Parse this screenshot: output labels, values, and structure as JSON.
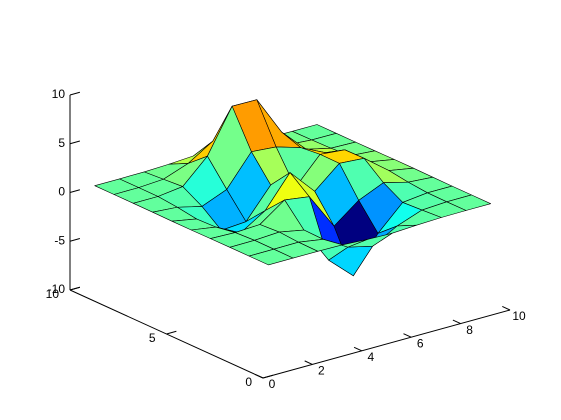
{
  "chart_data": {
    "type": "surface",
    "x": [
      1,
      2,
      3,
      4,
      5,
      6,
      7,
      8,
      9,
      10
    ],
    "y": [
      1,
      2,
      3,
      4,
      5,
      6,
      7,
      8,
      9,
      10
    ],
    "z": [
      [
        0,
        0,
        0,
        -0.03,
        -0.18,
        -0.25,
        -0.11,
        -0.02,
        0,
        0
      ],
      [
        0,
        0.01,
        0.03,
        -0.37,
        -1.87,
        -2.47,
        -1.09,
        -0.16,
        -0.01,
        0
      ],
      [
        0,
        0.02,
        0.17,
        -0.32,
        -4.1,
        -6.41,
        -2.76,
        -0.28,
        0.01,
        0
      ],
      [
        -0.01,
        -0.09,
        0.04,
        1.86,
        1.5,
        -2.22,
        -0.27,
        0.84,
        0.2,
        0.01
      ],
      [
        -0.03,
        -0.43,
        -1.73,
        -0.12,
        3.07,
        0.45,
        2.62,
        2.44,
        0.49,
        0.03
      ],
      [
        -0.03,
        -0.5,
        -2.36,
        -2.17,
        0.89,
        -0.05,
        2.64,
        2.41,
        0.48,
        0.03
      ],
      [
        -0.01,
        -0.2,
        -0.81,
        0.23,
        3.4,
        3.2,
        2.43,
        1.21,
        0.21,
        0.01
      ],
      [
        0,
        0,
        0.32,
        2.74,
        7.17,
        7.14,
        3.13,
        0.66,
        0.07,
        0
      ],
      [
        0,
        0.01,
        0.17,
        1.09,
        2.68,
        2.67,
        1.11,
        0.2,
        0.02,
        0
      ],
      [
        0,
        0,
        0.02,
        0.11,
        0.27,
        0.27,
        0.11,
        0.02,
        0,
        0
      ]
    ],
    "xlim": [
      0,
      10
    ],
    "ylim": [
      0,
      10
    ],
    "zlim": [
      -10,
      10
    ],
    "xticks": [
      0,
      2,
      4,
      6,
      8,
      10
    ],
    "yticks": [
      0,
      5,
      10
    ],
    "zticks": [
      -10,
      -5,
      0,
      5,
      10
    ],
    "colormap": "jet",
    "edgecolor": "#000000"
  }
}
